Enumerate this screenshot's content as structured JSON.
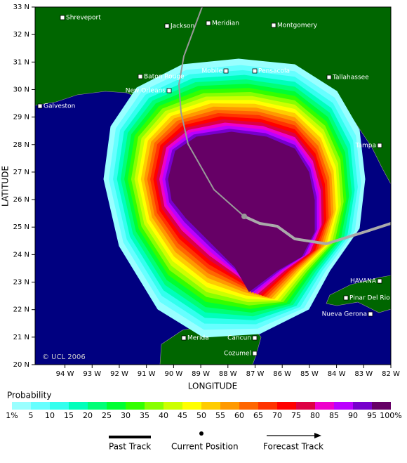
{
  "map": {
    "xlabel": "LONGITUDE",
    "ylabel": "LATITUDE",
    "xlim": [
      -95.1,
      -82
    ],
    "ylim": [
      20,
      33
    ],
    "xticks": [
      {
        "value": -94,
        "label": "94 W"
      },
      {
        "value": -93,
        "label": "93 W"
      },
      {
        "value": -92,
        "label": "92 W"
      },
      {
        "value": -91,
        "label": "91 W"
      },
      {
        "value": -90,
        "label": "90 W"
      },
      {
        "value": -89,
        "label": "89 W"
      },
      {
        "value": -88,
        "label": "88 W"
      },
      {
        "value": -87,
        "label": "87 W"
      },
      {
        "value": -86,
        "label": "86 W"
      },
      {
        "value": -85,
        "label": "85 W"
      },
      {
        "value": -84,
        "label": "84 W"
      },
      {
        "value": -83,
        "label": "83 W"
      },
      {
        "value": -82,
        "label": "82 W"
      }
    ],
    "yticks": [
      {
        "value": 20,
        "label": "20 N"
      },
      {
        "value": 21,
        "label": "21 N"
      },
      {
        "value": 22,
        "label": "22 N"
      },
      {
        "value": 23,
        "label": "23 N"
      },
      {
        "value": 24,
        "label": "24 N"
      },
      {
        "value": 25,
        "label": "25 N"
      },
      {
        "value": 26,
        "label": "26 N"
      },
      {
        "value": 27,
        "label": "27 N"
      },
      {
        "value": 28,
        "label": "28 N"
      },
      {
        "value": 29,
        "label": "29 N"
      },
      {
        "value": 30,
        "label": "30 N"
      },
      {
        "value": 31,
        "label": "31 N"
      },
      {
        "value": 32,
        "label": "32 N"
      },
      {
        "value": 33,
        "label": "33 N"
      }
    ],
    "cities": [
      "Shreveport",
      "Jackson",
      "Meridian",
      "Montgomery",
      "Baton Rouge",
      "Mobile",
      "Pensacola",
      "Tallahassee",
      "New Orleans",
      "Galveston",
      "Tampa",
      "HAVANA",
      "Pinar Del Rio",
      "Nueva Gerona",
      "Merida",
      "Cancun",
      "Cozumel"
    ],
    "copyright": "© UCL 2006"
  },
  "legend": {
    "title": "Probability",
    "levels": [
      {
        "value": 1,
        "label": "1%"
      },
      5,
      10,
      15,
      20,
      25,
      30,
      35,
      40,
      45,
      50,
      55,
      60,
      65,
      70,
      75,
      80,
      85,
      90,
      95,
      {
        "value": 100,
        "label": "100%"
      }
    ],
    "colors": [
      "#99ffff",
      "#66ffff",
      "#33ffee",
      "#00ffbb",
      "#00ff77",
      "#00ff33",
      "#33ff00",
      "#88ff00",
      "#ccff00",
      "#ffff00",
      "#ffcc00",
      "#ff9900",
      "#ff6600",
      "#ff3300",
      "#ff0000",
      "#dd0044",
      "#ee00cc",
      "#bb00ff",
      "#7700cc",
      "#660066"
    ],
    "items": [
      "Past Track",
      "Current Position",
      "Forecast Track"
    ]
  }
}
